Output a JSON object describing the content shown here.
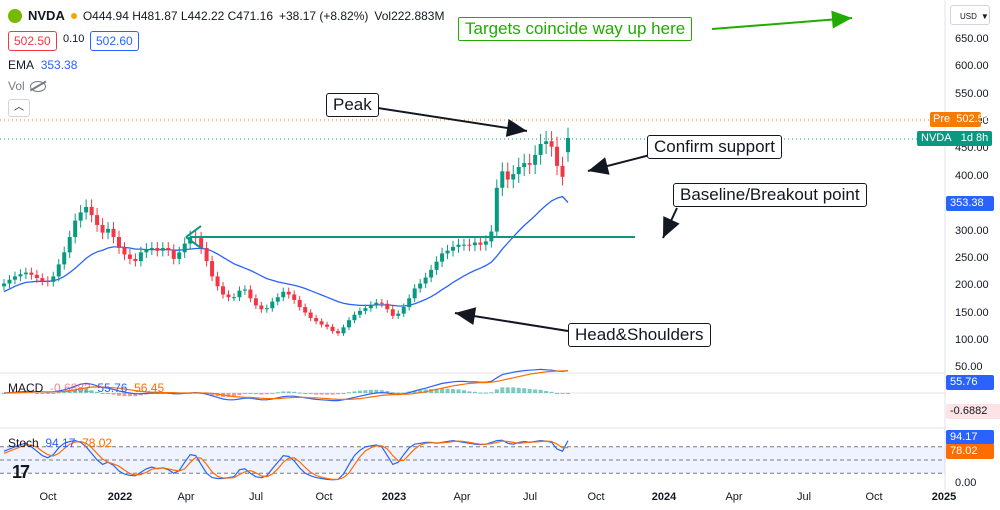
{
  "header": {
    "symbol": "NVDA",
    "ohlc_text": "O444.94 H481.87 L442.22 C471.16",
    "change_text": "+38.17 (+8.82%)",
    "vol_text": "Vol222.883M",
    "bid": "502.50",
    "spread": "0.10",
    "ask": "502.60",
    "ema_label": "EMA",
    "ema_value": "353.38",
    "vol_label": "Vol",
    "currency": "USD"
  },
  "price_badges": {
    "pre_label": "Pre",
    "pre_value": "502.56",
    "symbol_label": "NVDA",
    "time_label": "1d 8h",
    "ema_value": "353.38",
    "macd_value": "55.76",
    "macd_hist_value": "-0.6882",
    "stoch_k_value": "94.17",
    "stoch_d_value": "78.02"
  },
  "macd_pane": {
    "label": "MACD",
    "v1": "-0.6882",
    "v2": "55.76",
    "v3": "56.45"
  },
  "stoch_pane": {
    "label": "Stoch",
    "v1": "94.17",
    "v2": "78.02"
  },
  "annotations": {
    "targets": "Targets coincide way up here",
    "peak": "Peak",
    "confirm": "Confirm support",
    "baseline": "Baseline/Breakout point",
    "head_shoulders": "Head&Shoulders"
  },
  "colors": {
    "up": "#089981",
    "down": "#f23645",
    "ema": "#2962ff",
    "macd_signal": "#ff6d00",
    "arrow_green": "#22ab00",
    "breakout_line": "#089981",
    "pre": "#f57c00"
  },
  "chart_data": {
    "type": "candlestick",
    "price_axis": {
      "ticks": [
        "650.00",
        "600.00",
        "550.00",
        "500.00",
        "450.00",
        "400.00",
        "350.00",
        "300.00",
        "250.00",
        "200.00",
        "150.00",
        "100.00",
        "50.00"
      ],
      "ylim": [
        0,
        675
      ]
    },
    "time_axis": {
      "labels": [
        {
          "label": "Oct",
          "bold": false
        },
        {
          "label": "2022",
          "bold": true
        },
        {
          "label": "Apr",
          "bold": false
        },
        {
          "label": "Jul",
          "bold": false
        },
        {
          "label": "Oct",
          "bold": false
        },
        {
          "label": "2023",
          "bold": true
        },
        {
          "label": "Apr",
          "bold": false
        },
        {
          "label": "Jul",
          "bold": false
        },
        {
          "label": "Oct",
          "bold": false
        },
        {
          "label": "2024",
          "bold": true
        },
        {
          "label": "Apr",
          "bold": false
        },
        {
          "label": "Jul",
          "bold": false
        },
        {
          "label": "Oct",
          "bold": false
        },
        {
          "label": "2025",
          "bold": true
        }
      ]
    },
    "weekly_close": [
      205,
      212,
      218,
      222,
      225,
      221,
      215,
      210,
      208,
      218,
      240,
      262,
      290,
      320,
      335,
      345,
      330,
      312,
      298,
      305,
      290,
      270,
      258,
      250,
      246,
      262,
      268,
      270,
      265,
      270,
      266,
      250,
      262,
      278,
      290,
      288,
      270,
      246,
      218,
      200,
      185,
      180,
      180,
      192,
      194,
      178,
      165,
      158,
      160,
      172,
      180,
      190,
      185,
      175,
      162,
      152,
      142,
      136,
      130,
      126,
      118,
      114,
      125,
      138,
      148,
      155,
      160,
      166,
      170,
      168,
      158,
      146,
      150,
      162,
      178,
      196,
      205,
      216,
      230,
      245,
      260,
      265,
      272,
      276,
      276,
      275,
      280,
      276,
      282,
      300,
      380,
      410,
      395,
      405,
      418,
      425,
      422,
      440,
      460,
      465,
      455,
      420,
      400,
      471
    ],
    "weekly_open": [
      200,
      205,
      212,
      218,
      222,
      225,
      221,
      215,
      210,
      208,
      218,
      240,
      262,
      290,
      320,
      335,
      345,
      330,
      312,
      298,
      305,
      290,
      270,
      258,
      250,
      246,
      262,
      268,
      270,
      265,
      270,
      266,
      250,
      262,
      278,
      290,
      288,
      270,
      246,
      218,
      200,
      185,
      180,
      180,
      192,
      194,
      178,
      165,
      158,
      160,
      172,
      180,
      190,
      185,
      175,
      162,
      152,
      142,
      136,
      130,
      126,
      118,
      114,
      125,
      138,
      148,
      155,
      160,
      166,
      170,
      168,
      158,
      146,
      150,
      162,
      178,
      196,
      205,
      216,
      230,
      245,
      260,
      265,
      272,
      276,
      276,
      275,
      280,
      276,
      282,
      300,
      380,
      410,
      395,
      405,
      418,
      425,
      422,
      440,
      460,
      465,
      455,
      420,
      445
    ],
    "ema": [
      190,
      195,
      200,
      204,
      207,
      208,
      209,
      209,
      209,
      210,
      213,
      218,
      225,
      233,
      242,
      251,
      258,
      263,
      266,
      270,
      272,
      272,
      271,
      270,
      268,
      268,
      267,
      267,
      267,
      267,
      267,
      266,
      266,
      267,
      268,
      269,
      269,
      268,
      264,
      259,
      253,
      247,
      241,
      237,
      233,
      229,
      224,
      219,
      214,
      211,
      208,
      206,
      204,
      202,
      199,
      196,
      192,
      188,
      184,
      180,
      176,
      172,
      169,
      167,
      166,
      165,
      165,
      165,
      166,
      166,
      166,
      165,
      164,
      164,
      165,
      168,
      172,
      176,
      181,
      187,
      194,
      200,
      207,
      213,
      219,
      224,
      229,
      233,
      238,
      244,
      255,
      268,
      279,
      290,
      301,
      311,
      320,
      329,
      339,
      348,
      356,
      361,
      364,
      353
    ],
    "macd": {
      "ticks": [],
      "badges": [
        "55.76",
        "-0.6882"
      ],
      "line": [
        0,
        1,
        2,
        3,
        4,
        4,
        3,
        3,
        2,
        3,
        5,
        8,
        12,
        17,
        22,
        24,
        22,
        18,
        14,
        12,
        9,
        5,
        2,
        0,
        -2,
        -2,
        -1,
        0,
        0,
        0,
        0,
        -2,
        -2,
        -1,
        0,
        1,
        0,
        -3,
        -7,
        -11,
        -15,
        -17,
        -17,
        -15,
        -13,
        -13,
        -15,
        -17,
        -17,
        -15,
        -12,
        -9,
        -8,
        -8,
        -10,
        -12,
        -14,
        -16,
        -17,
        -18,
        -19,
        -19,
        -17,
        -14,
        -11,
        -8,
        -5,
        -2,
        0,
        1,
        0,
        -2,
        -3,
        -2,
        1,
        5,
        9,
        12,
        16,
        20,
        24,
        26,
        28,
        29,
        29,
        28,
        28,
        27,
        27,
        29,
        38,
        46,
        49,
        52,
        54,
        56,
        57,
        58,
        59,
        58,
        57,
        55,
        54,
        56
      ],
      "signal": [
        0,
        0,
        1,
        1,
        2,
        2,
        3,
        3,
        3,
        3,
        3,
        4,
        6,
        8,
        11,
        13,
        15,
        15,
        15,
        14,
        13,
        12,
        10,
        8,
        6,
        4,
        3,
        2,
        2,
        1,
        1,
        1,
        0,
        0,
        0,
        0,
        0,
        0,
        -1,
        -3,
        -5,
        -7,
        -9,
        -10,
        -11,
        -11,
        -12,
        -13,
        -14,
        -14,
        -14,
        -13,
        -12,
        -11,
        -11,
        -11,
        -12,
        -12,
        -13,
        -14,
        -15,
        -16,
        -16,
        -16,
        -15,
        -14,
        -12,
        -10,
        -8,
        -6,
        -5,
        -4,
        -4,
        -3,
        -3,
        -1,
        1,
        3,
        6,
        9,
        12,
        15,
        18,
        20,
        22,
        24,
        25,
        26,
        26,
        27,
        29,
        32,
        35,
        38,
        41,
        44,
        47,
        49,
        51,
        53,
        54,
        55,
        55,
        56
      ]
    },
    "stoch": {
      "levels": [
        80,
        50,
        20
      ],
      "k": [
        70,
        75,
        80,
        85,
        88,
        80,
        70,
        60,
        55,
        62,
        78,
        88,
        92,
        94,
        90,
        80,
        65,
        50,
        40,
        45,
        38,
        25,
        18,
        15,
        14,
        22,
        30,
        34,
        30,
        32,
        28,
        20,
        26,
        45,
        62,
        60,
        40,
        20,
        10,
        8,
        8,
        10,
        12,
        28,
        30,
        20,
        12,
        10,
        14,
        30,
        45,
        60,
        58,
        48,
        32,
        20,
        14,
        10,
        8,
        6,
        5,
        6,
        18,
        40,
        60,
        72,
        80,
        82,
        84,
        80,
        60,
        40,
        45,
        62,
        78,
        86,
        88,
        90,
        90,
        88,
        90,
        92,
        94,
        92,
        90,
        88,
        86,
        85,
        86,
        90,
        94,
        95,
        88,
        86,
        90,
        92,
        90,
        92,
        94,
        93,
        90,
        75,
        70,
        94
      ],
      "d": [
        65,
        70,
        75,
        80,
        84,
        84,
        79,
        70,
        62,
        59,
        65,
        76,
        86,
        91,
        92,
        88,
        78,
        65,
        52,
        45,
        41,
        36,
        27,
        19,
        16,
        17,
        22,
        29,
        31,
        32,
        30,
        27,
        25,
        30,
        44,
        56,
        54,
        40,
        23,
        13,
        9,
        9,
        10,
        17,
        23,
        26,
        21,
        14,
        12,
        18,
        30,
        45,
        54,
        55,
        46,
        33,
        22,
        15,
        11,
        8,
        6,
        6,
        10,
        21,
        39,
        57,
        71,
        78,
        82,
        82,
        75,
        60,
        48,
        49,
        62,
        75,
        84,
        88,
        89,
        89,
        89,
        90,
        92,
        93,
        92,
        90,
        88,
        86,
        86,
        87,
        90,
        93,
        92,
        90,
        88,
        89,
        91,
        91,
        92,
        93,
        92,
        86,
        78,
        78
      ]
    }
  }
}
